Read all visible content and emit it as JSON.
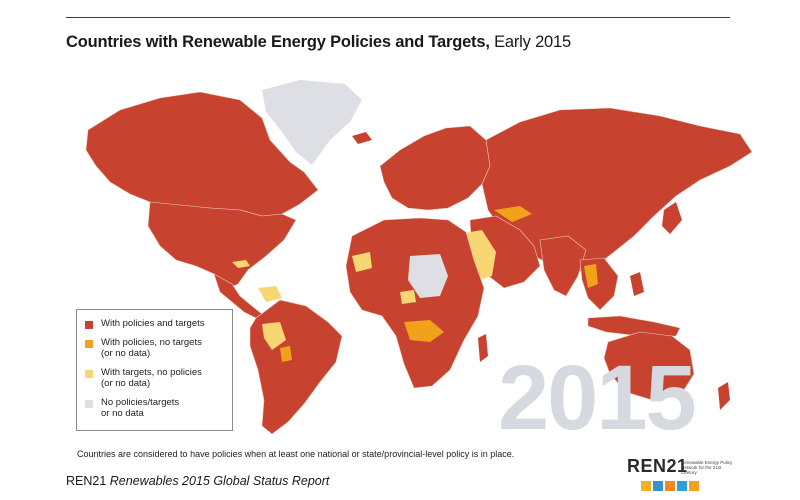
{
  "title": {
    "bold": "Countries with Renewable Energy Policies and Targets,",
    "regular": " Early 2015"
  },
  "legend": {
    "items": [
      {
        "label": "With policies and targets",
        "color": "#c8432f"
      },
      {
        "label": "With policies, no targets\n(or no data)",
        "color": "#f0a31a"
      },
      {
        "label": "With targets, no policies\n(or no data)",
        "color": "#f8d673"
      },
      {
        "label": "No policies/targets\nor no data",
        "color": "#dddfe4"
      }
    ]
  },
  "watermark_year": "2015",
  "footnote": "Countries are considered to have policies when at least one national or state/provincial-level policy is in place.",
  "source": {
    "org": "REN21",
    "report": "Renewables 2015 Global Status Report"
  },
  "logo": {
    "name": "REN21",
    "tagline": "Renewable Energy Policy Network for the 21st Century",
    "icon_colors": [
      "#f3b21a",
      "#3a8fd1",
      "#f08a1c",
      "#2f9fd8",
      "#f4a01a"
    ]
  },
  "colors": {
    "policies_and_targets": "#c8432f",
    "policies_no_targets": "#f0a31a",
    "targets_no_policies": "#f8d673",
    "no_data": "#dddfe4",
    "border": "#e9c9bf"
  }
}
